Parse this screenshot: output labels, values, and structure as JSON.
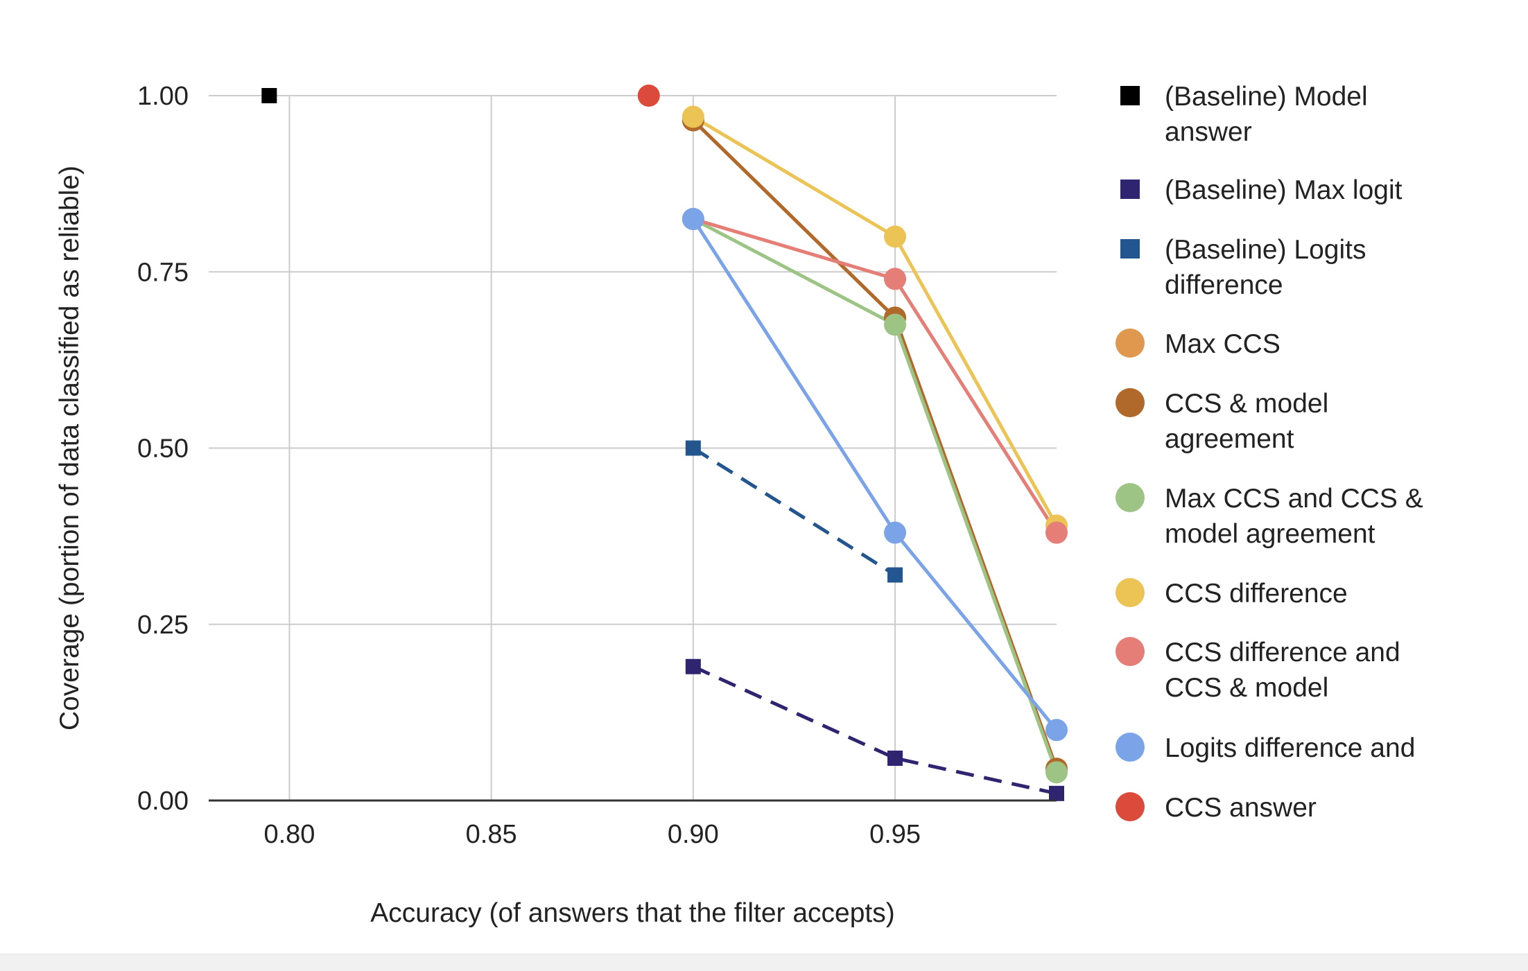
{
  "chart_data": {
    "type": "line",
    "title": "",
    "xlabel": "Accuracy (of answers that the filter accepts)",
    "ylabel": "Coverage (portion of data classified as reliable)",
    "xlim": [
      0.78,
      0.99
    ],
    "ylim": [
      0,
      1
    ],
    "x_ticks": [
      "0.80",
      "0.85",
      "0.90",
      "0.95"
    ],
    "y_ticks": [
      "0.00",
      "0.25",
      "0.50",
      "0.75",
      "1.00"
    ],
    "grid": true,
    "legend_position": "right",
    "series": [
      {
        "name": "(Baseline) Model answer",
        "color": "#000000",
        "marker": "square",
        "dash": false,
        "points": [
          [
            0.795,
            1.0
          ]
        ]
      },
      {
        "name": "(Baseline) Max logit",
        "color": "#2e2470",
        "marker": "square",
        "dash": true,
        "points": [
          [
            0.9,
            0.19
          ],
          [
            0.95,
            0.06
          ],
          [
            0.99,
            0.01
          ]
        ]
      },
      {
        "name": "(Baseline) Logits difference",
        "color": "#23568f",
        "marker": "square",
        "dash": true,
        "points": [
          [
            0.9,
            0.5
          ],
          [
            0.95,
            0.32
          ]
        ]
      },
      {
        "name": "Max CCS",
        "color": "#e0984e",
        "marker": "circle",
        "dash": false,
        "points": [
          [
            0.9,
            0.965
          ],
          [
            0.95,
            0.685
          ],
          [
            0.99,
            0.045
          ]
        ]
      },
      {
        "name": "CCS & model agreement",
        "color": "#b0692a",
        "marker": "circle",
        "dash": false,
        "points": [
          [
            0.9,
            0.965
          ],
          [
            0.95,
            0.685
          ],
          [
            0.99,
            0.045
          ]
        ]
      },
      {
        "name": "Max CCS and CCS & model agreement",
        "color": "#9dc485",
        "marker": "circle",
        "dash": false,
        "points": [
          [
            0.9,
            0.825
          ],
          [
            0.95,
            0.675
          ],
          [
            0.99,
            0.04
          ]
        ]
      },
      {
        "name": "CCS difference",
        "color": "#ecc455",
        "marker": "circle",
        "dash": false,
        "points": [
          [
            0.9,
            0.97
          ],
          [
            0.95,
            0.8
          ],
          [
            0.99,
            0.39
          ]
        ]
      },
      {
        "name": "CCS difference and CCS & model",
        "color": "#e57e76",
        "marker": "circle",
        "dash": false,
        "points": [
          [
            0.9,
            0.825
          ],
          [
            0.95,
            0.74
          ],
          [
            0.99,
            0.38
          ]
        ]
      },
      {
        "name": "Logits difference and",
        "color": "#7ba4e8",
        "marker": "circle",
        "dash": false,
        "points": [
          [
            0.9,
            0.825
          ],
          [
            0.95,
            0.38
          ],
          [
            0.99,
            0.1
          ]
        ]
      },
      {
        "name": "CCS answer",
        "color": "#dc4a3c",
        "marker": "circle",
        "dash": false,
        "points": [
          [
            0.889,
            1.0
          ]
        ]
      }
    ],
    "legend": [
      {
        "lines": [
          "(Baseline) Model",
          "answer"
        ],
        "color": "#000000",
        "marker": "square"
      },
      {
        "lines": [
          "(Baseline) Max logit"
        ],
        "color": "#2e2470",
        "marker": "square"
      },
      {
        "lines": [
          "(Baseline) Logits",
          "difference"
        ],
        "color": "#23568f",
        "marker": "square"
      },
      {
        "lines": [
          "Max CCS"
        ],
        "color": "#e0984e",
        "marker": "circle"
      },
      {
        "lines": [
          "CCS & model",
          "agreement"
        ],
        "color": "#b0692a",
        "marker": "circle"
      },
      {
        "lines": [
          "Max CCS and CCS &",
          "model agreement"
        ],
        "color": "#9dc485",
        "marker": "circle"
      },
      {
        "lines": [
          "CCS difference"
        ],
        "color": "#ecc455",
        "marker": "circle"
      },
      {
        "lines": [
          "CCS difference and",
          "CCS & model"
        ],
        "color": "#e57e76",
        "marker": "circle"
      },
      {
        "lines": [
          "Logits difference and"
        ],
        "color": "#7ba4e8",
        "marker": "circle"
      },
      {
        "lines": [
          "CCS answer"
        ],
        "color": "#dc4a3c",
        "marker": "circle"
      }
    ]
  }
}
